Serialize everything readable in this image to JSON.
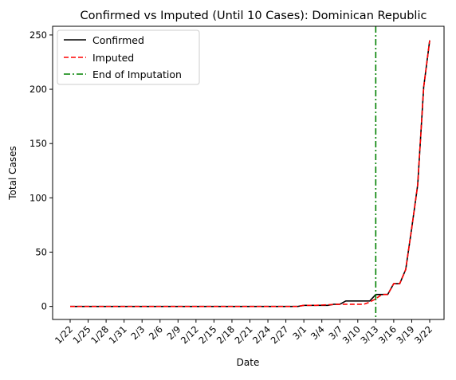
{
  "chart_data": {
    "type": "line",
    "title": "Confirmed vs Imputed (Until 10 Cases): Dominican Republic",
    "xlabel": "Date",
    "ylabel": "Total Cases",
    "x": [
      "1/22",
      "1/23",
      "1/24",
      "1/25",
      "1/26",
      "1/27",
      "1/28",
      "1/29",
      "1/30",
      "1/31",
      "2/1",
      "2/2",
      "2/3",
      "2/4",
      "2/5",
      "2/6",
      "2/7",
      "2/8",
      "2/9",
      "2/10",
      "2/11",
      "2/12",
      "2/13",
      "2/14",
      "2/15",
      "2/16",
      "2/17",
      "2/18",
      "2/19",
      "2/20",
      "2/21",
      "2/22",
      "2/23",
      "2/24",
      "2/25",
      "2/26",
      "2/27",
      "2/28",
      "2/29",
      "3/1",
      "3/2",
      "3/3",
      "3/4",
      "3/5",
      "3/6",
      "3/7",
      "3/8",
      "3/9",
      "3/10",
      "3/11",
      "3/12",
      "3/13",
      "3/14",
      "3/15",
      "3/16",
      "3/17",
      "3/18",
      "3/19",
      "3/20",
      "3/21",
      "3/22"
    ],
    "x_ticks": [
      "1/22",
      "1/25",
      "1/28",
      "1/31",
      "2/3",
      "2/6",
      "2/9",
      "2/12",
      "2/15",
      "2/18",
      "2/21",
      "2/24",
      "2/27",
      "3/1",
      "3/4",
      "3/7",
      "3/10",
      "3/13",
      "3/16",
      "3/19",
      "3/22"
    ],
    "y_ticks": [
      0,
      50,
      100,
      150,
      200,
      250
    ],
    "ylim": [
      -12,
      258
    ],
    "series": [
      {
        "name": "Confirmed",
        "color": "#000000",
        "style": "solid",
        "values": [
          0,
          0,
          0,
          0,
          0,
          0,
          0,
          0,
          0,
          0,
          0,
          0,
          0,
          0,
          0,
          0,
          0,
          0,
          0,
          0,
          0,
          0,
          0,
          0,
          0,
          0,
          0,
          0,
          0,
          0,
          0,
          0,
          0,
          0,
          0,
          0,
          0,
          0,
          0,
          1,
          1,
          1,
          1,
          1,
          2,
          2,
          5,
          5,
          5,
          5,
          5,
          11,
          11,
          11,
          21,
          21,
          34,
          72,
          112,
          202,
          245
        ]
      },
      {
        "name": "Imputed",
        "color": "#ff0000",
        "style": "dashed",
        "values": [
          0,
          0,
          0,
          0,
          0,
          0,
          0,
          0,
          0,
          0,
          0,
          0,
          0,
          0,
          0,
          0,
          0,
          0,
          0,
          0,
          0,
          0,
          0,
          0,
          0,
          0,
          0,
          0,
          0,
          0,
          0,
          0,
          0,
          0,
          0,
          0,
          0,
          0,
          0,
          1,
          1,
          1,
          1.3,
          1.5,
          1.7,
          2,
          2,
          2,
          2,
          2,
          4,
          7,
          11,
          11,
          21,
          21,
          34,
          72,
          112,
          202,
          245
        ]
      }
    ],
    "vline": {
      "name": "End of Imputation",
      "x": "3/13",
      "color": "#008000",
      "style": "dashdot"
    },
    "legend_position": "top-left",
    "grid": false
  }
}
